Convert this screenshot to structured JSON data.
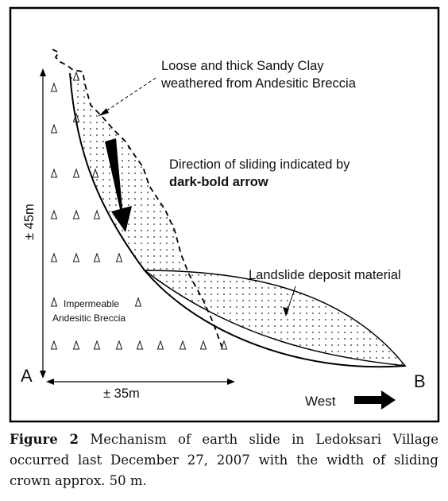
{
  "diagram": {
    "labels": {
      "top_note_line1": "Loose and thick Sandy Clay",
      "top_note_line2": "weathered from Andesitic Breccia",
      "direction_line1": "Direction of sliding indicated by",
      "direction_line2": "dark-bold arrow",
      "deposit": "Landslide deposit material",
      "rock_line1": "Impermeable",
      "rock_line2": "Andesitic Breccia",
      "height": "± 45m",
      "width": "± 35m",
      "point_a": "A",
      "point_b": "B",
      "west": "West"
    },
    "colors": {
      "border": "#000000",
      "ink": "#111111",
      "dots": "#222222"
    }
  },
  "caption": {
    "label": "Figure 2",
    "text": "Mechanism of earth slide in Ledoksari Village occurred last December 27, 2007 with the width of sliding crown approx. 50 m."
  }
}
